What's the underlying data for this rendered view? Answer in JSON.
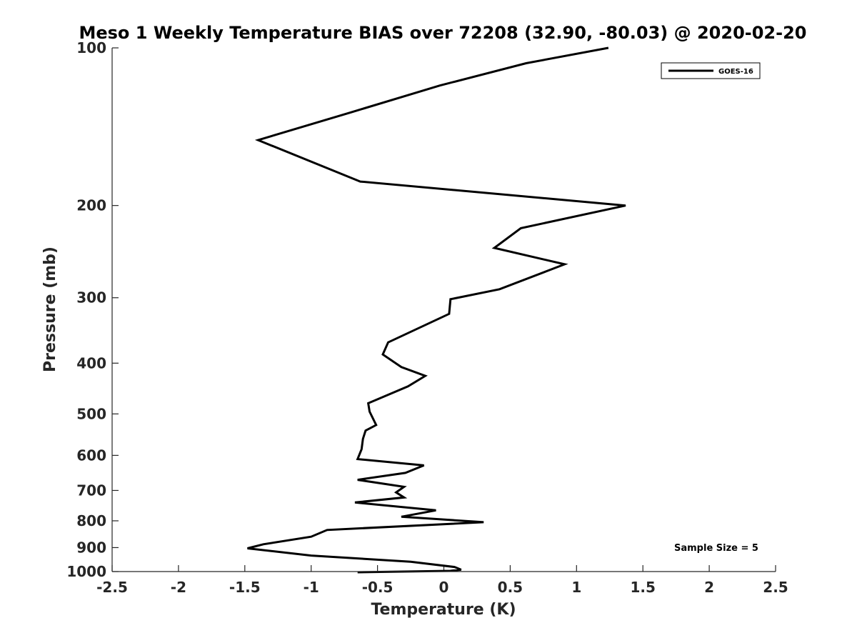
{
  "chart_data": {
    "type": "line",
    "title": "Meso 1 Weekly Temperature BIAS over 72208 (32.90, -80.03) @ 2020-02-20",
    "xlabel": "Temperature (K)",
    "ylabel": "Pressure (mb)",
    "xlim": [
      -2.5,
      2.5
    ],
    "ylim": [
      1000,
      100
    ],
    "y_scale": "log",
    "y_reversed": true,
    "x_ticks": [
      "-2.5",
      "-2",
      "-1.5",
      "-1",
      "-0.5",
      "0",
      "0.5",
      "1",
      "1.5",
      "2",
      "2.5"
    ],
    "y_ticks": [
      "100",
      "200",
      "300",
      "400",
      "500",
      "600",
      "700",
      "800",
      "900",
      "1000"
    ],
    "grid": false,
    "legend_position": "top-right",
    "annotation": "Sample Size = 5",
    "series": [
      {
        "name": "GOES-16",
        "color": "#000000",
        "x": [
          1.24,
          0.62,
          -0.03,
          -0.71,
          -1.4,
          -0.63,
          1.37,
          0.58,
          0.38,
          0.91,
          0.42,
          0.05,
          0.04,
          -0.42,
          -0.46,
          -0.32,
          -0.14,
          -0.27,
          -0.57,
          -0.56,
          -0.51,
          -0.59,
          -0.61,
          -0.62,
          -0.65,
          -0.15,
          -0.29,
          -0.65,
          -0.3,
          -0.36,
          -0.3,
          -0.67,
          -0.06,
          -0.32,
          0.3,
          -0.88,
          -1.0,
          -1.36,
          -1.48,
          -1.0,
          -0.25,
          0.08,
          0.13,
          0.05,
          -0.65
        ],
        "y": [
          100,
          107,
          118,
          133,
          150,
          180,
          200,
          221,
          241,
          259,
          289,
          302,
          322,
          365,
          385,
          407,
          423,
          443,
          477,
          495,
          525,
          538,
          558,
          584,
          610,
          627,
          648,
          668,
          689,
          706,
          722,
          738,
          764,
          786,
          805,
          833,
          858,
          887,
          903,
          932,
          958,
          980,
          992,
          997,
          1003
        ]
      }
    ]
  }
}
